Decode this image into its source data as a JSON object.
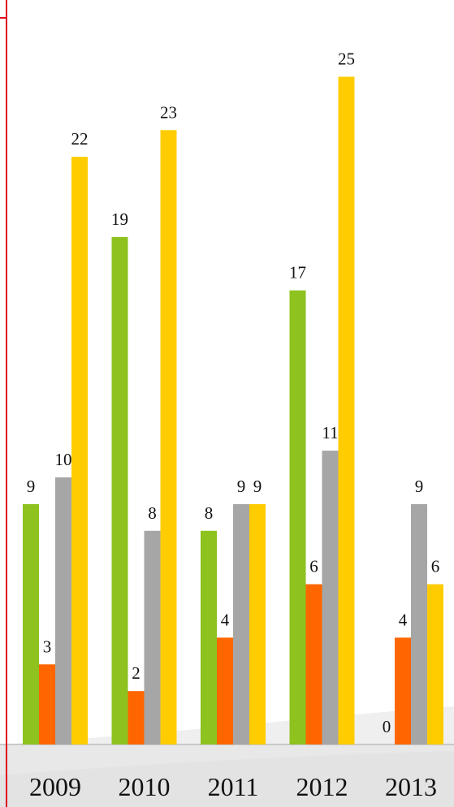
{
  "chart_data": {
    "type": "bar",
    "title": "",
    "xlabel": "",
    "ylabel": "",
    "categories": [
      "2009",
      "2010",
      "2011",
      "2012",
      "2013"
    ],
    "ylim": [
      0,
      28
    ],
    "grid": false,
    "legend": "none",
    "series": [
      {
        "color": "#8dc21f",
        "values": [
          9,
          19,
          8,
          17,
          0
        ]
      },
      {
        "color": "#ff6600",
        "values": [
          3,
          2,
          4,
          6,
          4
        ]
      },
      {
        "color": "#a6a6a6",
        "values": [
          10,
          8,
          9,
          11,
          9
        ]
      },
      {
        "color": "#ffcc00",
        "values": [
          22,
          23,
          9,
          25,
          6
        ]
      }
    ],
    "axis_color": "#e0001b"
  }
}
